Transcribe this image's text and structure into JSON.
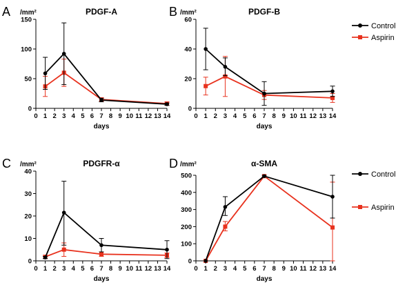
{
  "colors": {
    "control": "#000000",
    "aspirin": "#e8321e"
  },
  "legend": {
    "control_label": "Control",
    "aspirin_label": "Aspirin"
  },
  "chart_data": [
    {
      "panel": "A",
      "type": "line",
      "title": "PDGF-A",
      "ylabel": "/mm²",
      "xlabel": "days",
      "xlim": [
        0,
        14
      ],
      "xticks": [
        0,
        1,
        2,
        3,
        4,
        5,
        6,
        7,
        8,
        9,
        10,
        11,
        12,
        13,
        14
      ],
      "ylim": [
        0,
        150
      ],
      "yticks": [
        0,
        50,
        100,
        150
      ],
      "series": [
        {
          "name": "Control",
          "x": [
            1,
            3,
            7,
            14
          ],
          "y": [
            59,
            92,
            14,
            7
          ],
          "err_low": [
            32,
            40,
            11,
            5
          ],
          "err_high": [
            86,
            144,
            17,
            9
          ]
        },
        {
          "name": "Aspirin",
          "x": [
            1,
            3,
            7,
            14
          ],
          "y": [
            37,
            60,
            15,
            8
          ],
          "err_low": [
            20,
            37,
            12,
            5
          ],
          "err_high": [
            54,
            83,
            18,
            11
          ]
        }
      ]
    },
    {
      "panel": "B",
      "type": "line",
      "title": "PDGF-B",
      "ylabel": "/mm²",
      "xlabel": "days",
      "xlim": [
        0,
        14
      ],
      "xticks": [
        0,
        1,
        2,
        3,
        4,
        5,
        6,
        7,
        8,
        9,
        10,
        11,
        12,
        13,
        14
      ],
      "ylim": [
        0,
        60
      ],
      "yticks": [
        0,
        20,
        40,
        60
      ],
      "series": [
        {
          "name": "Control",
          "x": [
            1,
            3,
            7,
            14
          ],
          "y": [
            40,
            28,
            10,
            11.5
          ],
          "err_low": [
            26,
            22,
            2,
            8
          ],
          "err_high": [
            54,
            34,
            18,
            15
          ]
        },
        {
          "name": "Aspirin",
          "x": [
            1,
            3,
            7,
            14
          ],
          "y": [
            15,
            21.5,
            9,
            7
          ],
          "err_low": [
            9,
            8,
            6,
            4
          ],
          "err_high": [
            21,
            35,
            12,
            10
          ]
        }
      ]
    },
    {
      "panel": "C",
      "type": "line",
      "title": "PDGFR-α",
      "ylabel": "/mm²",
      "xlabel": "days",
      "xlim": [
        0,
        14
      ],
      "xticks": [
        0,
        1,
        2,
        3,
        4,
        5,
        6,
        7,
        8,
        9,
        10,
        11,
        12,
        13,
        14
      ],
      "ylim": [
        0,
        40
      ],
      "yticks": [
        0,
        10,
        20,
        30,
        40
      ],
      "series": [
        {
          "name": "Control",
          "x": [
            1,
            3,
            7,
            14
          ],
          "y": [
            1.5,
            21.5,
            7,
            5
          ],
          "err_low": [
            1,
            7,
            4,
            1
          ],
          "err_high": [
            2,
            35.5,
            10,
            9
          ]
        },
        {
          "name": "Aspirin",
          "x": [
            1,
            3,
            7,
            14
          ],
          "y": [
            1.8,
            5,
            3,
            2.5
          ],
          "err_low": [
            1,
            2,
            2,
            1.5
          ],
          "err_high": [
            2.5,
            8,
            4,
            3.5
          ]
        }
      ]
    },
    {
      "panel": "D",
      "type": "line",
      "title": "α-SMA",
      "ylabel": "/mm²",
      "xlabel": "days",
      "xlim": [
        0,
        14
      ],
      "xticks": [
        0,
        1,
        2,
        3,
        4,
        5,
        6,
        7,
        8,
        9,
        10,
        11,
        12,
        13,
        14
      ],
      "ylim": [
        0,
        500
      ],
      "yticks": [
        0,
        100,
        200,
        300,
        400,
        500
      ],
      "series": [
        {
          "name": "Control",
          "x": [
            1,
            3,
            7,
            14
          ],
          "y": [
            0,
            315,
            495,
            375
          ],
          "err_low": [
            0,
            265,
            490,
            250
          ],
          "err_high": [
            0,
            375,
            500,
            500
          ]
        },
        {
          "name": "Aspirin",
          "x": [
            1,
            3,
            7,
            14
          ],
          "y": [
            0,
            200,
            495,
            195
          ],
          "err_low": [
            0,
            175,
            490,
            0
          ],
          "err_high": [
            0,
            230,
            500,
            460
          ]
        }
      ]
    }
  ]
}
